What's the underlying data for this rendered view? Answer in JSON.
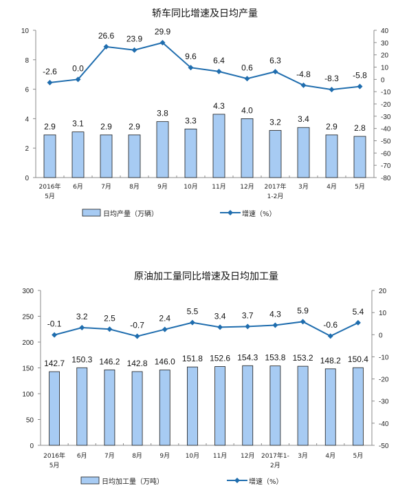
{
  "colors": {
    "bar": "#A7CBF3",
    "bar_border": "#1a1a1a",
    "line": "#1F6DAE",
    "axis": "#888888"
  },
  "chart_data": [
    {
      "type": "bar+line",
      "title": "轿车同比增速及日均产量",
      "categories": [
        [
          "2016年",
          "5月"
        ],
        [
          "6月"
        ],
        [
          "7月"
        ],
        [
          "8月"
        ],
        [
          "9月"
        ],
        [
          "10月"
        ],
        [
          "11月"
        ],
        [
          "12月"
        ],
        [
          "2017年",
          "1-2月"
        ],
        [
          "3月"
        ],
        [
          "4月"
        ],
        [
          "5月"
        ]
      ],
      "bar_series": {
        "name": "日均产量（万辆）",
        "values": [
          2.9,
          3.1,
          2.9,
          2.9,
          3.8,
          3.3,
          4.3,
          4.0,
          3.2,
          3.4,
          2.9,
          2.8
        ]
      },
      "line_series": {
        "name": "增速（%）",
        "values": [
          -2.6,
          0.0,
          26.6,
          23.9,
          29.9,
          9.6,
          6.4,
          0.6,
          6.3,
          -4.8,
          -8.3,
          -5.8
        ]
      },
      "left_axis": {
        "range": [
          0,
          10
        ],
        "ticks": [
          0,
          2,
          4,
          6,
          8,
          10
        ]
      },
      "right_axis": {
        "range": [
          -80,
          40
        ],
        "ticks": [
          -80,
          -70,
          -60,
          -50,
          -40,
          -30,
          -20,
          -10,
          0,
          10,
          20,
          30,
          40
        ]
      },
      "legend": "bottom",
      "grid": false
    },
    {
      "type": "bar+line",
      "title": "原油加工量同比增速及日均加工量",
      "categories": [
        [
          "2016年",
          "5月"
        ],
        [
          "6月"
        ],
        [
          "7月"
        ],
        [
          "8月"
        ],
        [
          "9月"
        ],
        [
          "10月"
        ],
        [
          "11月"
        ],
        [
          "12月"
        ],
        [
          "2017年1-",
          "2月"
        ],
        [
          "3月"
        ],
        [
          "4月"
        ],
        [
          "5月"
        ]
      ],
      "bar_series": {
        "name": "日均加工量（万吨）",
        "values": [
          142.7,
          150.3,
          146.2,
          142.8,
          146.0,
          151.8,
          152.6,
          154.3,
          153.8,
          153.2,
          148.2,
          150.4
        ]
      },
      "line_series": {
        "name": "增速（%）",
        "values": [
          -0.1,
          3.2,
          2.5,
          -0.7,
          2.4,
          5.5,
          3.4,
          3.7,
          4.3,
          5.9,
          -0.6,
          5.4
        ]
      },
      "left_axis": {
        "range": [
          0,
          300
        ],
        "ticks": [
          0,
          50,
          100,
          150,
          200,
          250,
          300
        ]
      },
      "right_axis": {
        "range": [
          -50,
          20
        ],
        "ticks": [
          -50,
          -40,
          -30,
          -20,
          -10,
          0,
          10,
          20
        ]
      },
      "legend": "bottom",
      "grid": false
    }
  ]
}
